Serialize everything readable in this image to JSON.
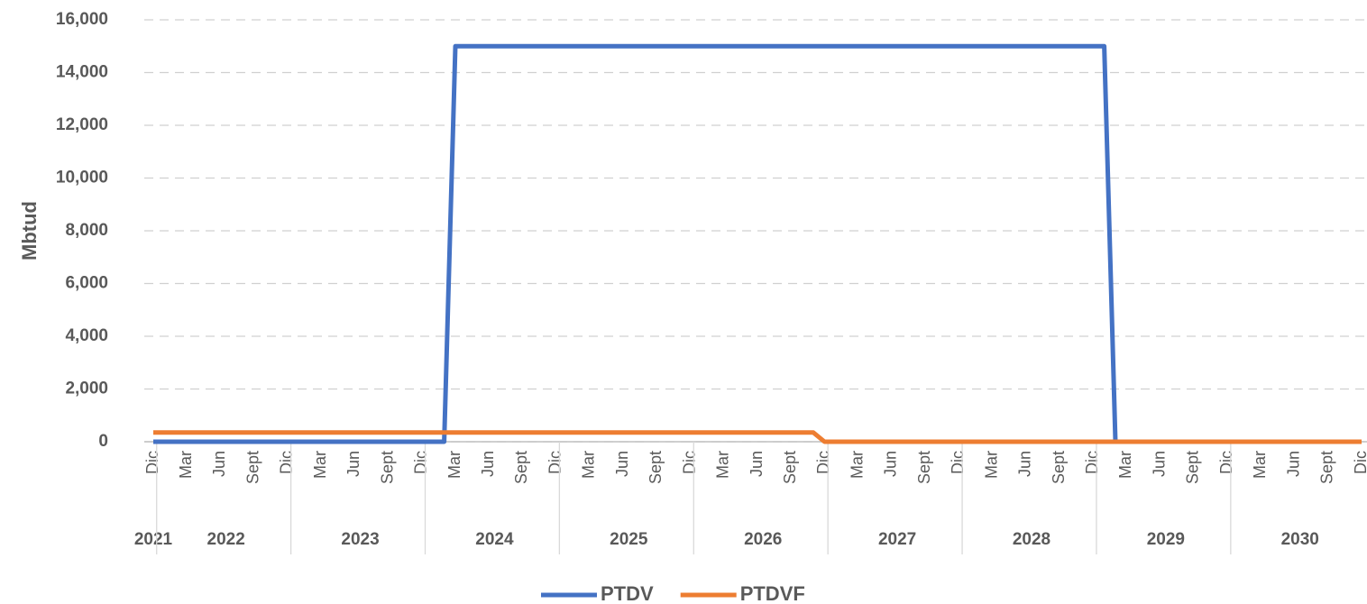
{
  "chart_data": {
    "type": "line",
    "ylabel": "Mbtud",
    "categories": [
      "Dic",
      null,
      null,
      "Mar",
      null,
      null,
      "Jun",
      null,
      null,
      "Sept",
      null,
      null,
      "Dic",
      null,
      null,
      "Mar",
      null,
      null,
      "Jun",
      null,
      null,
      "Sept",
      null,
      null,
      "Dic",
      null,
      null,
      "Mar",
      null,
      null,
      "Jun",
      null,
      null,
      "Sept",
      null,
      null,
      "Dic",
      null,
      null,
      "Mar",
      null,
      null,
      "Jun",
      null,
      null,
      "Sept",
      null,
      null,
      "Dic",
      null,
      null,
      "Mar",
      null,
      null,
      "Jun",
      null,
      null,
      "Sept",
      null,
      null,
      "Dic",
      null,
      null,
      "Mar",
      null,
      null,
      "Jun",
      null,
      null,
      "Sept",
      null,
      null,
      "Dic",
      null,
      null,
      "Mar",
      null,
      null,
      "Jun",
      null,
      null,
      "Sept",
      null,
      null,
      "Dic",
      null,
      null,
      "Mar",
      null,
      null,
      "Jun",
      null,
      null,
      "Sept",
      null,
      null,
      "Dic",
      null,
      null,
      "Mar",
      null,
      null,
      "Jun",
      null,
      null,
      "Sept",
      null,
      null,
      "Dic"
    ],
    "years": [
      "2021",
      "2022",
      "2023",
      "2024",
      "2025",
      "2026",
      "2027",
      "2028",
      "2029",
      "2030"
    ],
    "series": [
      {
        "name": "PTDV",
        "color": "#4472c4",
        "values": [
          0,
          0,
          0,
          0,
          0,
          0,
          0,
          0,
          0,
          0,
          0,
          0,
          0,
          0,
          0,
          0,
          0,
          0,
          0,
          0,
          0,
          0,
          0,
          0,
          0,
          0,
          0,
          15000,
          15000,
          15000,
          15000,
          15000,
          15000,
          15000,
          15000,
          15000,
          15000,
          15000,
          15000,
          15000,
          15000,
          15000,
          15000,
          15000,
          15000,
          15000,
          15000,
          15000,
          15000,
          15000,
          15000,
          15000,
          15000,
          15000,
          15000,
          15000,
          15000,
          15000,
          15000,
          15000,
          15000,
          15000,
          15000,
          15000,
          15000,
          15000,
          15000,
          15000,
          15000,
          15000,
          15000,
          15000,
          15000,
          15000,
          15000,
          15000,
          15000,
          15000,
          15000,
          15000,
          15000,
          15000,
          15000,
          15000,
          15000,
          15000,
          0,
          0,
          0,
          0,
          0,
          0,
          0,
          0,
          0,
          0,
          0,
          0,
          0,
          0,
          0,
          0,
          0,
          0,
          0,
          0,
          0,
          0,
          0
        ]
      },
      {
        "name": "PTDVF",
        "color": "#ed7d31",
        "values": [
          350,
          350,
          350,
          350,
          350,
          350,
          350,
          350,
          350,
          350,
          350,
          350,
          350,
          350,
          350,
          350,
          350,
          350,
          350,
          350,
          350,
          350,
          350,
          350,
          350,
          350,
          350,
          350,
          350,
          350,
          350,
          350,
          350,
          350,
          350,
          350,
          350,
          350,
          350,
          350,
          350,
          350,
          350,
          350,
          350,
          350,
          350,
          350,
          350,
          350,
          350,
          350,
          350,
          350,
          350,
          350,
          350,
          350,
          350,
          350,
          0,
          0,
          0,
          0,
          0,
          0,
          0,
          0,
          0,
          0,
          0,
          0,
          0,
          0,
          0,
          0,
          0,
          0,
          0,
          0,
          0,
          0,
          0,
          0,
          0,
          0,
          0,
          0,
          0,
          0,
          0,
          0,
          0,
          0,
          0,
          0,
          0,
          0,
          0,
          0,
          0,
          0,
          0,
          0,
          0,
          0,
          0,
          0,
          0
        ]
      }
    ],
    "ylim": [
      0,
      16000
    ],
    "yticks": [
      {
        "value": 0,
        "label": "0"
      },
      {
        "value": 2000,
        "label": "2,000"
      },
      {
        "value": 4000,
        "label": "4,000"
      },
      {
        "value": 6000,
        "label": "6,000"
      },
      {
        "value": 8000,
        "label": "8,000"
      },
      {
        "value": 10000,
        "label": "10,000"
      },
      {
        "value": 12000,
        "label": "12,000"
      },
      {
        "value": 14000,
        "label": "14,000"
      },
      {
        "value": 16000,
        "label": "16,000"
      }
    ],
    "grid": true,
    "legend": "bottom"
  }
}
